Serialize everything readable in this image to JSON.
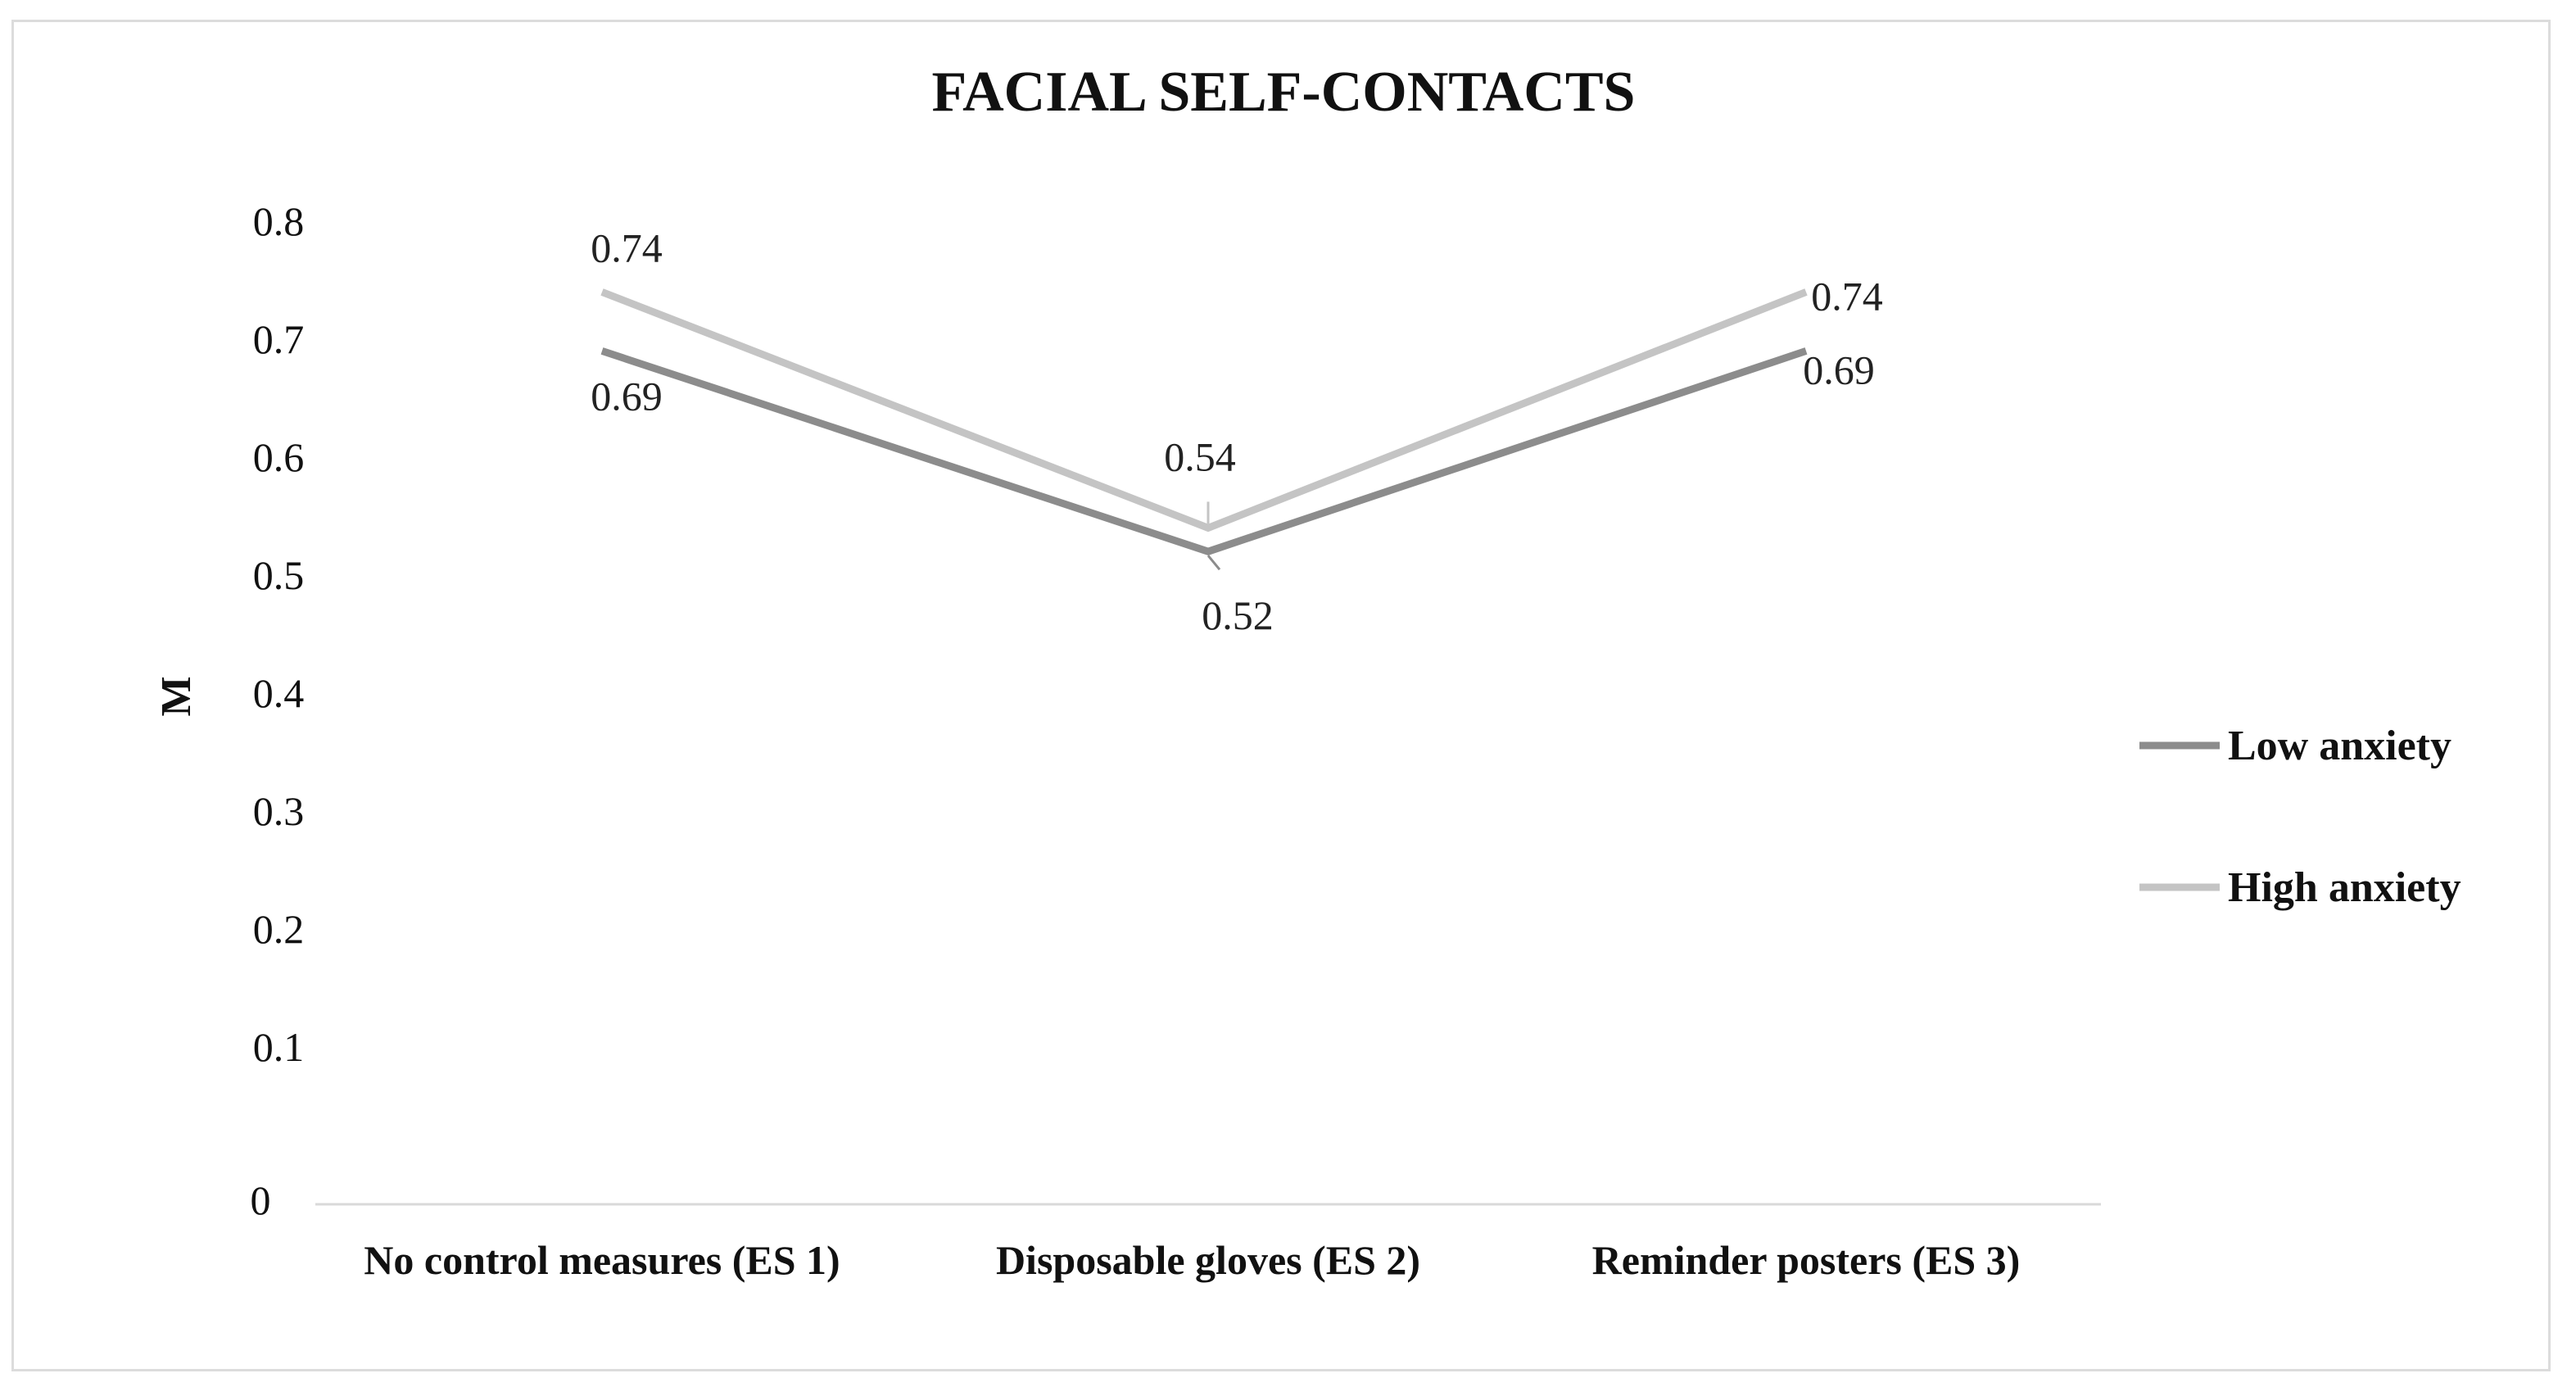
{
  "chart_data": {
    "type": "line",
    "title": "FACIAL SELF-CONTACTS",
    "ylabel": "M",
    "xlabel": "",
    "categories": [
      "No control measures (ES 1)",
      "Disposable gloves (ES 2)",
      "Reminder posters (ES 3)"
    ],
    "ylim": [
      0,
      0.8
    ],
    "yticks": [
      "0",
      "0.1",
      "0.2",
      "0.3",
      "0.4",
      "0.5",
      "0.6",
      "0.7",
      "0.8"
    ],
    "grid": false,
    "legend_position": "right",
    "series": [
      {
        "name": "Low anxiety",
        "values": [
          0.69,
          0.52,
          0.69
        ],
        "labels": [
          "0.69",
          "0.52",
          "0.69"
        ],
        "color": "#8c8c8c"
      },
      {
        "name": "High anxiety",
        "values": [
          0.74,
          0.54,
          0.74
        ],
        "labels": [
          "0.74",
          "0.54",
          "0.74"
        ],
        "color": "#c4c4c4"
      }
    ]
  }
}
